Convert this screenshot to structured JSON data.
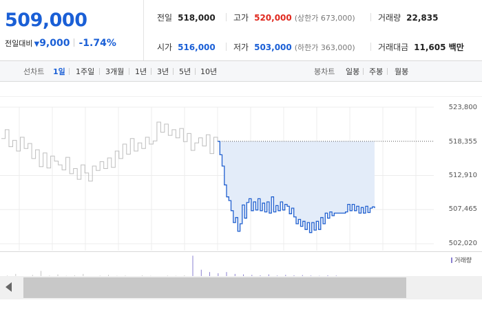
{
  "quote": {
    "price": "509,000",
    "change_label": "전일대비",
    "change_symbol": "▼",
    "change_amount": "9,000",
    "change_percent": "-1.74%"
  },
  "stats": {
    "prev_close_label": "전일",
    "prev_close": "518,000",
    "high_label": "고가",
    "high": "520,000",
    "upper_limit": "(상한가 673,000)",
    "volume_label": "거래량",
    "volume": "22,835",
    "open_label": "시가",
    "open": "516,000",
    "low_label": "저가",
    "low": "503,000",
    "lower_limit": "(하한가 363,000)",
    "trade_value_label": "거래대금",
    "trade_value": "11,605 백만"
  },
  "line_tabs": {
    "label": "선차트",
    "items": [
      "1일",
      "1주일",
      "3개월",
      "1년",
      "3년",
      "5년",
      "10년"
    ],
    "selected": "1일"
  },
  "candle_tabs": {
    "label": "봉차트",
    "items": [
      "일봉",
      "주봉",
      "월봉"
    ]
  },
  "chart_data": {
    "type": "line",
    "y_tick_labels": [
      "523,800",
      "518,355",
      "512,910",
      "507,465",
      "502,020"
    ],
    "ylim": [
      502020,
      523800
    ],
    "reference_line": 518355,
    "grid": true,
    "previous_day_values": [
      518800,
      520200,
      517500,
      518500,
      516800,
      519000,
      517200,
      518000,
      515600,
      517000,
      514300,
      516500,
      514100,
      516000,
      515200,
      514600,
      513800,
      515800,
      513200,
      514000,
      512300,
      514600,
      513300,
      512000,
      514400,
      513700,
      515100,
      514000,
      515700,
      514200,
      516800,
      515600,
      517900,
      516300,
      518800,
      516800,
      518100,
      517200,
      519000,
      517900,
      518400,
      521400,
      519800,
      521100,
      519300,
      520200,
      518900,
      520400,
      518300,
      519600,
      516900,
      518100,
      518900,
      517600,
      519400,
      516400,
      519000,
      518355
    ],
    "today_values": [
      518355,
      516200,
      514400,
      511400,
      509500,
      508900,
      507300,
      505400,
      506200,
      504000,
      505200,
      508200,
      506100,
      508600,
      509200,
      507300,
      508700,
      507400,
      509200,
      507300,
      508500,
      507100,
      508700,
      506900,
      509500,
      507100,
      508100,
      507300,
      508700,
      507400,
      508300,
      508000,
      506800,
      507700,
      506300,
      505200,
      505900,
      504800,
      505600,
      504300,
      505400,
      503800,
      505400,
      504200,
      505600,
      504300,
      506200,
      505200,
      506900,
      506100,
      507100,
      506500,
      506900,
      506900,
      506900,
      506900,
      506900,
      507100,
      508300,
      507300,
      508300,
      507300,
      508000,
      506900,
      507800,
      506900,
      508000,
      507000,
      507700,
      507900,
      507700
    ],
    "volume_series_label": "거래량",
    "volume_bars": [
      0.05,
      0.12,
      0.03,
      0.08,
      0.25,
      0.05,
      0.1,
      0.04,
      0.06,
      0.12,
      0.03,
      0.05,
      0.08,
      0.04,
      0.05,
      0.03,
      0.06,
      0.04,
      0.03,
      0.05,
      0.04,
      0.06,
      0.9,
      0.3,
      0.2,
      0.15,
      0.2,
      0.12,
      0.1,
      0.08,
      0.06,
      0.1,
      0.05,
      0.08,
      0.06,
      0.07,
      0.05,
      0.04,
      0.06,
      0.05
    ],
    "colors": {
      "previous": "#bdbdbd",
      "today": "#1f5fcf",
      "fill": "#e3ecf9",
      "volume": "#8a7fd0"
    }
  }
}
